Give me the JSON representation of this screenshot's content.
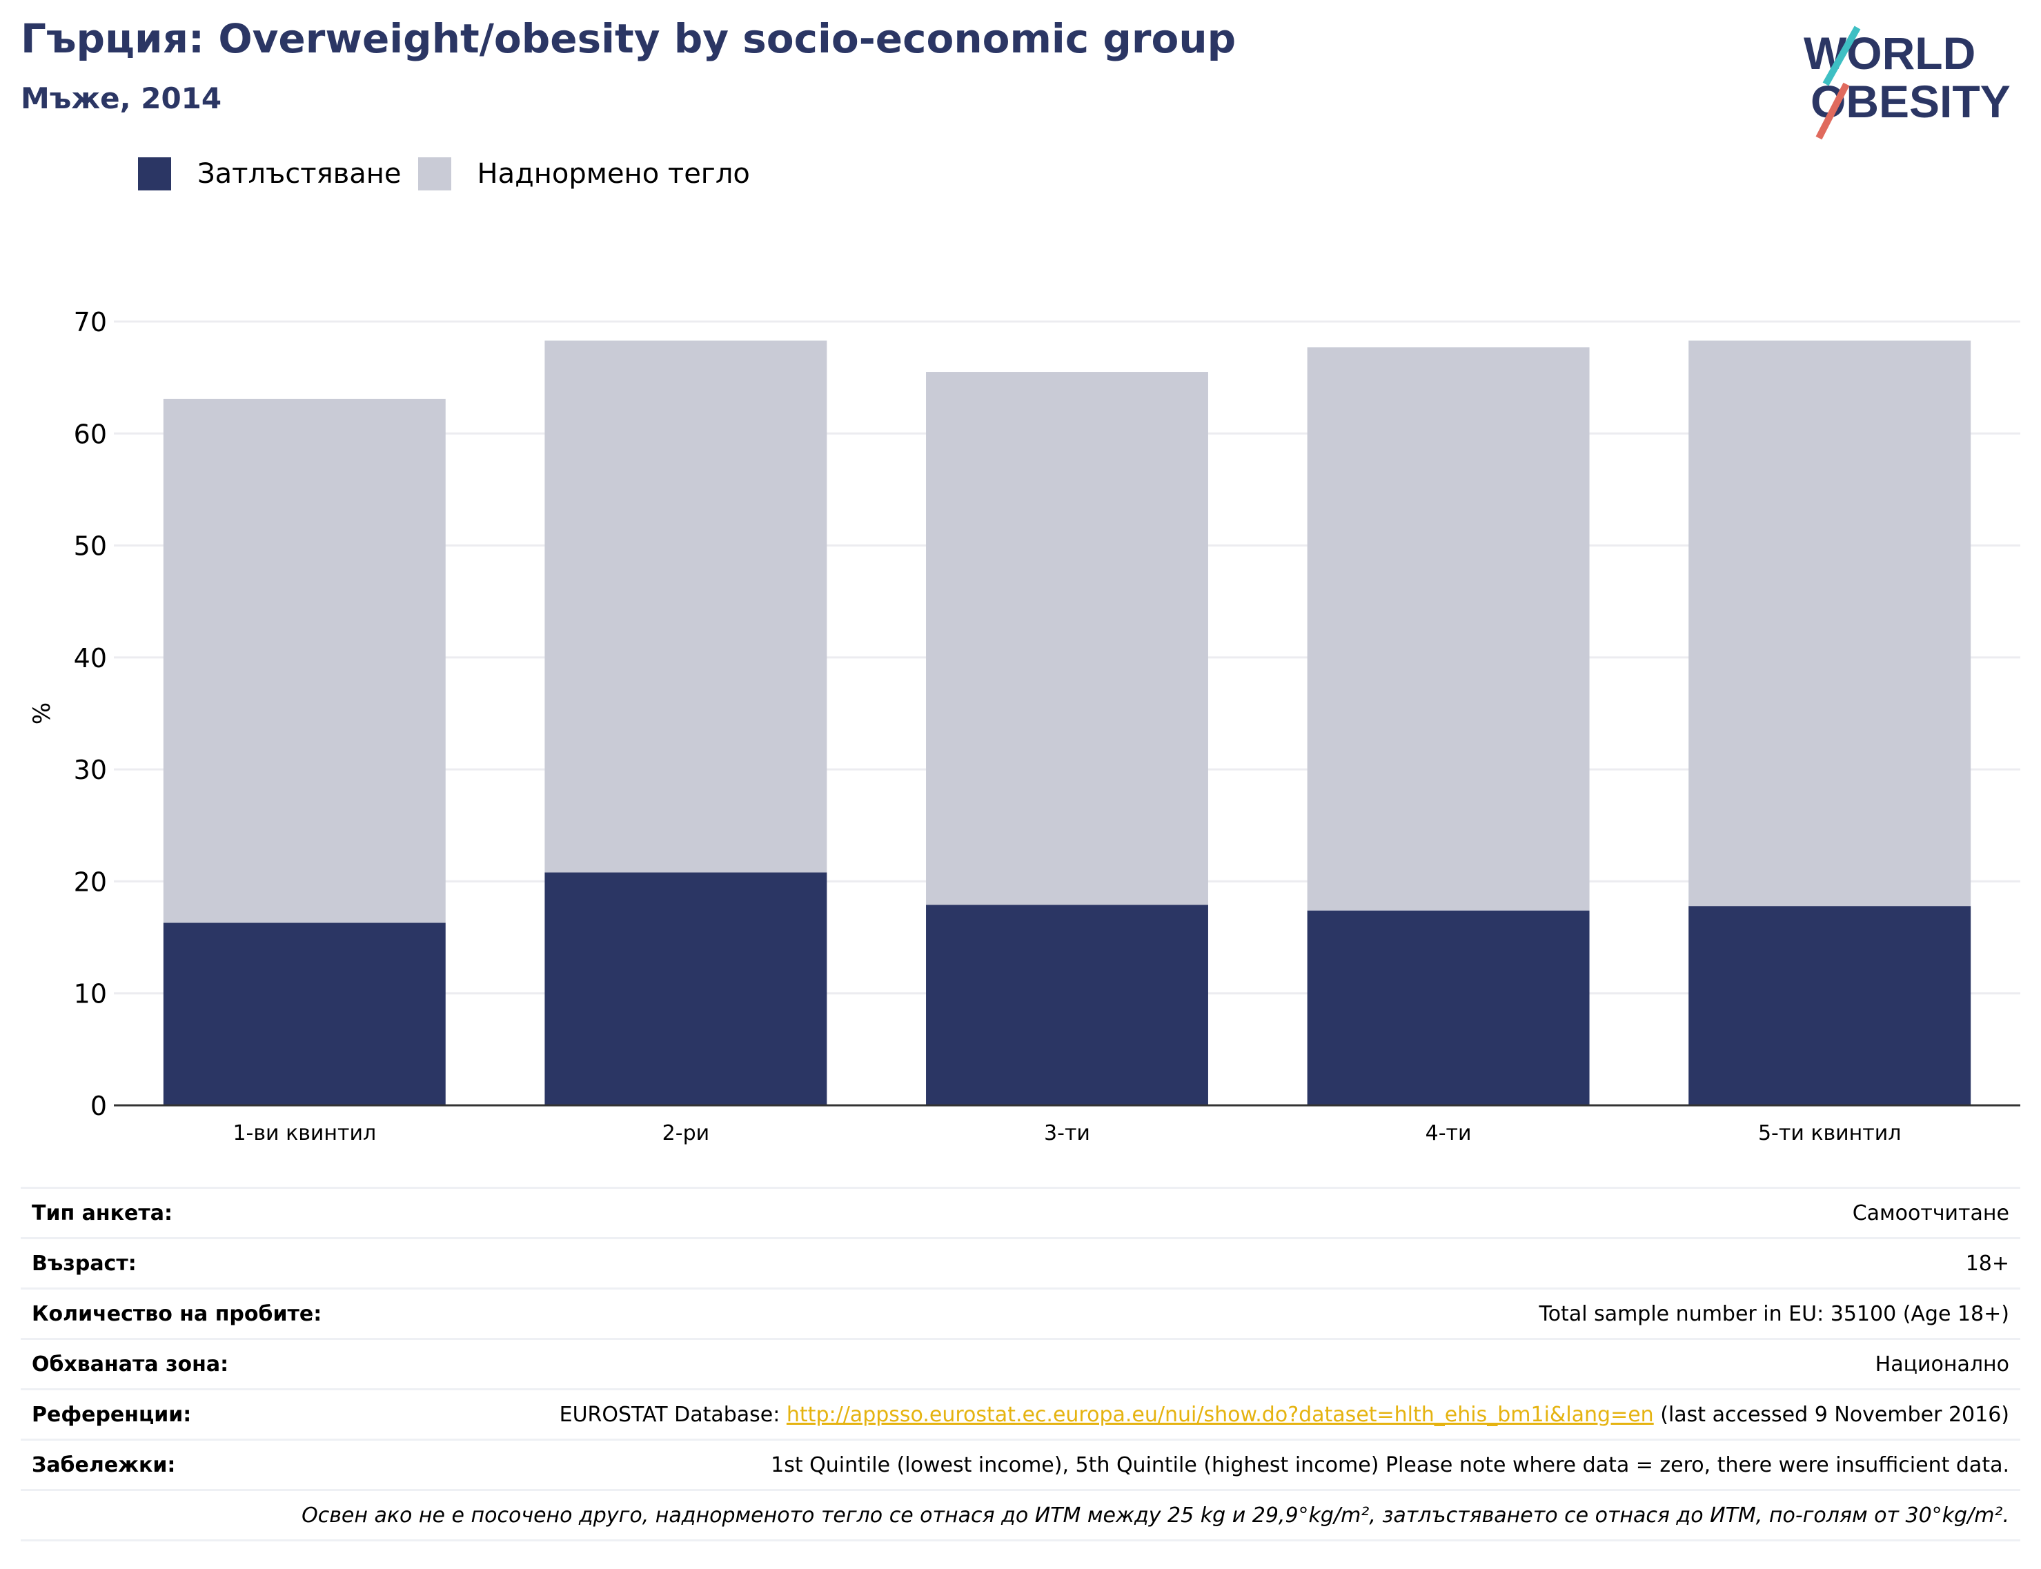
{
  "header": {
    "title": "Гърция: Overweight/obesity by socio-economic group",
    "subtitle": "Мъже, 2014"
  },
  "logo": {
    "line1": "WORLD",
    "line2": "OBESITY"
  },
  "legend": [
    {
      "label": "Затлъстяване",
      "color": "#2b3664"
    },
    {
      "label": "Наднормено тегло",
      "color": "#c9cbd6"
    }
  ],
  "chart_data": {
    "type": "bar",
    "stacked": true,
    "categories": [
      "1-ви квинтил",
      "2-ри",
      "3-ти",
      "4-ти",
      "5-ти квинтил"
    ],
    "series": [
      {
        "name": "Затлъстяване",
        "values": [
          16.3,
          20.8,
          17.9,
          17.4,
          17.8
        ],
        "color": "#2b3664"
      },
      {
        "name": "Наднормено тегло",
        "values": [
          46.8,
          47.5,
          47.6,
          50.3,
          50.5
        ],
        "color": "#c9cbd6"
      }
    ],
    "ylabel": "%",
    "ylim": [
      0,
      70
    ],
    "yticks": [
      0,
      10,
      20,
      30,
      40,
      50,
      60,
      70
    ],
    "grid": true,
    "legend_position": "top-left"
  },
  "meta": [
    {
      "key": "Тип анкета:",
      "value": "Самоотчитане"
    },
    {
      "key": "Възраст:",
      "value": "18+"
    },
    {
      "key": "Количество на пробите:",
      "value": "Total sample number in EU: 35100 (Age 18+)"
    },
    {
      "key": "Обхваната зона:",
      "value": "Национално"
    },
    {
      "key": "Референции:",
      "value_prefix": "EUROSTAT Database: ",
      "link": "http://appsso.eurostat.ec.europa.eu/nui/show.do?dataset=hlth_ehis_bm1i&lang=en",
      "value_suffix": " (last accessed 9 November 2016)"
    },
    {
      "key": "Забележки:",
      "value": "1st Quintile (lowest income), 5th Quintile (highest income) Please note where data = zero, there were insufficient data."
    }
  ],
  "footnote": "Освен ако не е посочено друго, наднорменото тегло се отнася до ИТМ между 25 kg и 29,9°kg/m², затлъстяването се отнася до ИТМ, по-голям от 30°kg/m²."
}
